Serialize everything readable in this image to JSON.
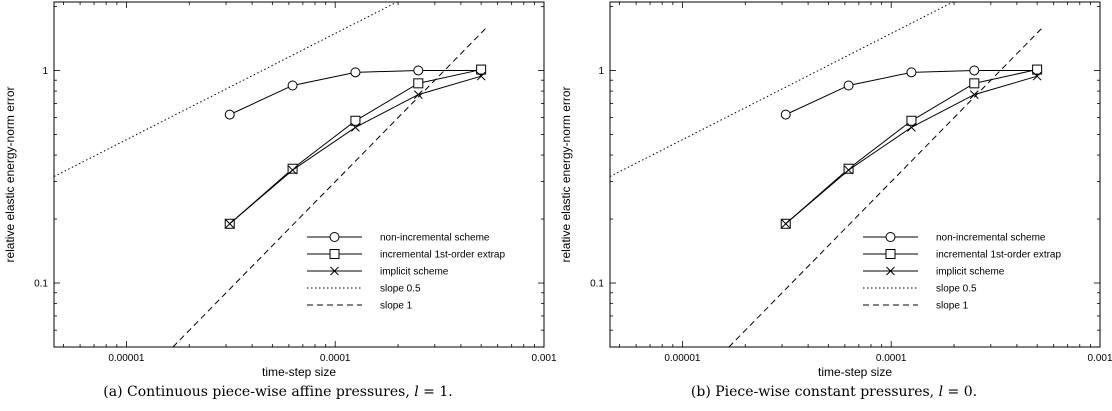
{
  "chart_data": [
    {
      "type": "line",
      "title": "",
      "caption": {
        "prefix": "(a) Continuous piece-wise affine pressures, ",
        "var": "l",
        "suffix": " = 1."
      },
      "xlabel": "time-step size",
      "ylabel": "relative elastic energy-norm error",
      "xscale": "log",
      "yscale": "log",
      "xlim": [
        4.5e-06,
        0.001
      ],
      "ylim": [
        0.05,
        2.1
      ],
      "xticks": [
        {
          "value": 1e-05,
          "label": "0.00001"
        },
        {
          "value": 0.0001,
          "label": "0.0001"
        },
        {
          "value": 0.001,
          "label": "0.001"
        }
      ],
      "yticks": [
        {
          "value": 0.1,
          "label": "0.1"
        },
        {
          "value": 1,
          "label": "1"
        }
      ],
      "legend_position": "bottom-right",
      "series": [
        {
          "name": "non-incremental scheme",
          "marker": "circle",
          "dash": "solid",
          "x": [
            3.125e-05,
            6.25e-05,
            0.000125,
            0.00025,
            0.0005
          ],
          "y": [
            0.62,
            0.85,
            0.98,
            1.0,
            1.0
          ]
        },
        {
          "name": "incremental 1st-order extrap",
          "marker": "square",
          "dash": "solid",
          "x": [
            3.125e-05,
            6.25e-05,
            0.000125,
            0.00025,
            0.0005
          ],
          "y": [
            0.19,
            0.345,
            0.58,
            0.87,
            1.01
          ]
        },
        {
          "name": "implicit scheme",
          "marker": "cross",
          "dash": "solid",
          "x": [
            3.125e-05,
            6.25e-05,
            0.000125,
            0.00025,
            0.0005
          ],
          "y": [
            0.19,
            0.34,
            0.54,
            0.77,
            0.94
          ]
        },
        {
          "name": "slope 0.5",
          "marker": "none",
          "dash": "dotted",
          "x": [
            4.5e-06,
            0.000227
          ],
          "y": [
            0.317,
            2.25
          ]
        },
        {
          "name": "slope 1",
          "marker": "none",
          "dash": "dashed",
          "x": [
            1.67e-05,
            0.00053
          ],
          "y": [
            0.05,
            1.59
          ]
        }
      ]
    },
    {
      "type": "line",
      "title": "",
      "caption": {
        "prefix": "(b) Piece-wise constant pressures, ",
        "var": "l",
        "suffix": " = 0."
      },
      "xlabel": "time-step size",
      "ylabel": "relative elastic energy-norm error",
      "xscale": "log",
      "yscale": "log",
      "xlim": [
        4.5e-06,
        0.001
      ],
      "ylim": [
        0.05,
        2.1
      ],
      "xticks": [
        {
          "value": 1e-05,
          "label": "0.00001"
        },
        {
          "value": 0.0001,
          "label": "0.0001"
        },
        {
          "value": 0.001,
          "label": "0.001"
        }
      ],
      "yticks": [
        {
          "value": 0.1,
          "label": "0.1"
        },
        {
          "value": 1,
          "label": "1"
        }
      ],
      "legend_position": "bottom-right",
      "series": [
        {
          "name": "non-incremental scheme",
          "marker": "circle",
          "dash": "solid",
          "x": [
            3.125e-05,
            6.25e-05,
            0.000125,
            0.00025,
            0.0005
          ],
          "y": [
            0.62,
            0.85,
            0.98,
            1.0,
            1.0
          ]
        },
        {
          "name": "incremental 1st-order extrap",
          "marker": "square",
          "dash": "solid",
          "x": [
            3.125e-05,
            6.25e-05,
            0.000125,
            0.00025,
            0.0005
          ],
          "y": [
            0.19,
            0.345,
            0.58,
            0.87,
            1.01
          ]
        },
        {
          "name": "implicit scheme",
          "marker": "cross",
          "dash": "solid",
          "x": [
            3.125e-05,
            6.25e-05,
            0.000125,
            0.00025,
            0.0005
          ],
          "y": [
            0.19,
            0.34,
            0.54,
            0.77,
            0.94
          ]
        },
        {
          "name": "slope 0.5",
          "marker": "none",
          "dash": "dotted",
          "x": [
            4.5e-06,
            0.000227
          ],
          "y": [
            0.317,
            2.25
          ]
        },
        {
          "name": "slope 1",
          "marker": "none",
          "dash": "dashed",
          "x": [
            1.67e-05,
            0.00053
          ],
          "y": [
            0.05,
            1.59
          ]
        }
      ]
    }
  ]
}
